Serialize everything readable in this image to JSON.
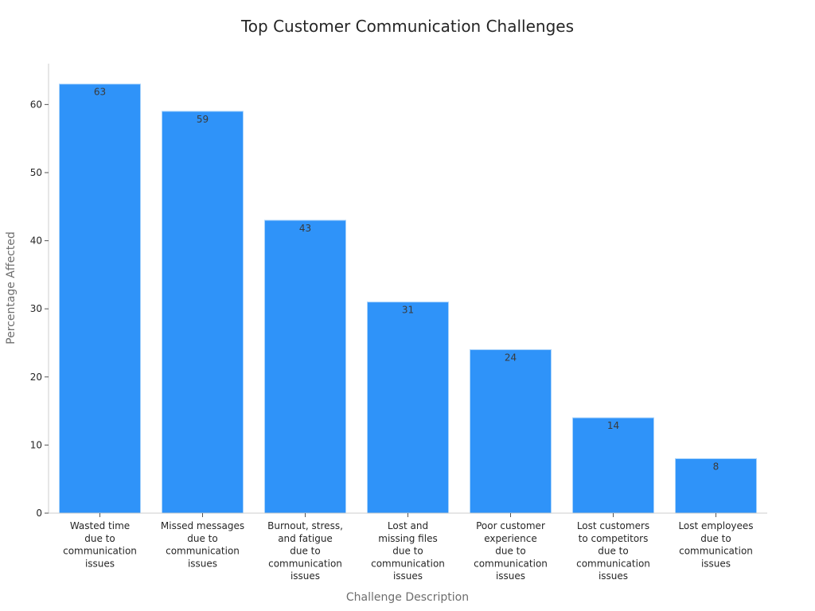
{
  "chart_data": {
    "type": "bar",
    "title": "Top Customer Communication Challenges",
    "xlabel": "Challenge Description",
    "ylabel": "Percentage Affected",
    "categories": [
      [
        "Wasted time",
        "due to",
        "communication",
        "issues"
      ],
      [
        "Missed messages",
        "due to",
        "communication",
        "issues"
      ],
      [
        "Burnout, stress,",
        "and fatigue",
        "due to",
        "communication",
        "issues"
      ],
      [
        "Lost and",
        "missing files",
        "due to",
        "communication",
        "issues"
      ],
      [
        "Poor customer",
        "experience",
        "due to",
        "communication",
        "issues"
      ],
      [
        "Lost customers",
        "to competitors",
        "due to",
        "communication",
        "issues"
      ],
      [
        "Lost employees",
        "due to",
        "communication",
        "issues"
      ]
    ],
    "values": [
      63,
      59,
      43,
      31,
      24,
      14,
      8
    ],
    "ylim": [
      0,
      66
    ],
    "yticks": [
      0,
      10,
      20,
      30,
      40,
      50,
      60
    ],
    "grid": false,
    "bar_color": "#2f93f9",
    "bar_edge_color": "#a9d3fb"
  }
}
